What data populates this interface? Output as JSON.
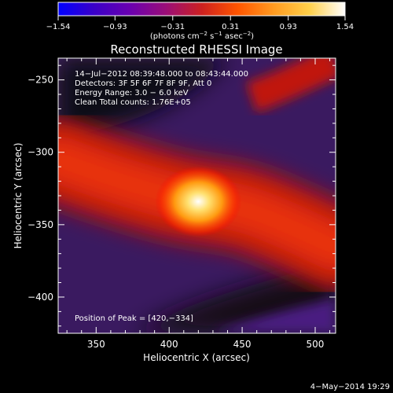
{
  "chart_data": {
    "type": "heatmap",
    "title": "Reconstructed RHESSI Image",
    "xlabel": "Heliocentric X (arcsec)",
    "ylabel": "Heliocentric Y (arcsec)",
    "xlim": [
      324,
      514
    ],
    "ylim": [
      -425,
      -235
    ],
    "x_ticks": [
      350,
      400,
      450,
      500
    ],
    "y_ticks": [
      -250,
      -300,
      -350,
      -400
    ],
    "x_tick_labels": [
      "350",
      "400",
      "450",
      "500"
    ],
    "y_tick_labels": [
      "−250",
      "−300",
      "−350",
      "−400"
    ],
    "colorbar": {
      "range": [
        -1.54,
        1.54
      ],
      "ticks": [
        -1.54,
        -0.93,
        -0.31,
        0.31,
        0.93,
        1.54
      ],
      "tick_labels": [
        "−1.54",
        "−0.93",
        "−0.31",
        "0.31",
        "0.93",
        "1.54"
      ],
      "unit_prefix": "(photons cm",
      "unit_exp1": "−2",
      "unit_middle": " s",
      "unit_exp2": "−1",
      "unit_after": " asec",
      "unit_exp3": "−2",
      "unit_suffix": ")",
      "colormap_stops": [
        "#0000ff",
        "#3a00c8",
        "#6a00b0",
        "#9a0e78",
        "#cc2020",
        "#ff5500",
        "#ff9a20",
        "#ffd04a",
        "#ffffff"
      ]
    },
    "annotations": [
      "14−Jul−2012 08:39:48.000 to 08:43:44.000",
      "Detectors: 3F 5F 6F 7F 8F 9F, Att 0",
      "Energy Range: 3.0 − 6.0 keV",
      "Clean    Total counts: 1.76E+05"
    ],
    "peak_label": "Position of Peak = [420,−334]",
    "peak": [
      420,
      -334
    ],
    "source_band_centerline": [
      [
        324,
        -305
      ],
      [
        360,
        -318
      ],
      [
        400,
        -330
      ],
      [
        420,
        -334
      ],
      [
        450,
        -338
      ],
      [
        480,
        -350
      ],
      [
        514,
        -366
      ]
    ]
  },
  "footer": {
    "date": "4−May−2014 19:29"
  }
}
